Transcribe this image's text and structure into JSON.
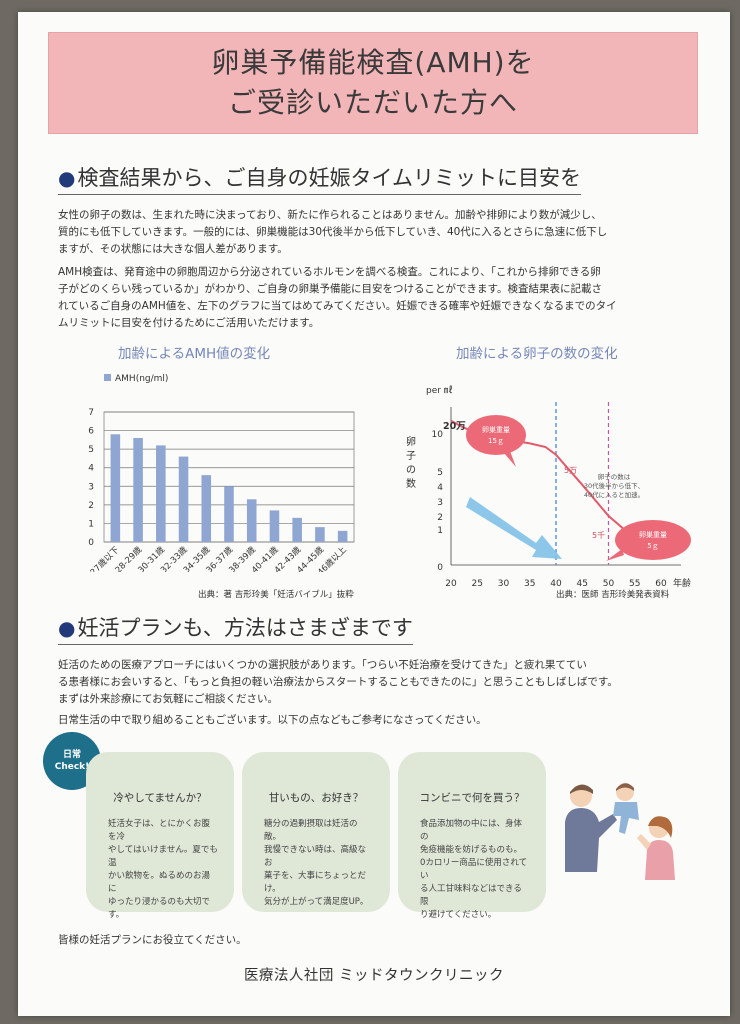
{
  "header": {
    "title_line1": "卵巣予備能検査(AMH)を",
    "title_line2": "ご受診いただいた方へ"
  },
  "section1": {
    "heading": "検査結果から、ご自身の妊娠タイムリミットに目安を",
    "para1": "女性の卵子の数は、生まれた時に決まっており、新たに作られることはありません。加齢や排卵により数が減少し、\n質的にも低下していきます。一般的には、卵巣機能は30代後半から低下していき、40代に入るとさらに急速に低下し\nますが、その状態には大きな個人差があります。",
    "para2": "AMH検査は、発育途中の卵胞周辺から分泌されているホルモンを調べる検査。これにより、「これから排卵できる卵\n子がどのくらい残っているか」がわかり、ご自身の卵巣予備能に目安をつけることができます。検査結果表に記載さ\nれているご自身のAMH値を、左下のグラフに当てはめてみてください。妊娠できる確率や妊娠できなくなるまでのタイ\nムリミットに目安を付けるためにご活用いただけます。"
  },
  "chart_data": [
    {
      "type": "bar",
      "title": "加齢によるAMH値の変化",
      "legend": "AMH(ng/ml)",
      "legend_position": "top-left",
      "categories": [
        "27歳以下",
        "28-29歳",
        "30-31歳",
        "32-33歳",
        "34-35歳",
        "36-37歳",
        "38-39歳",
        "40-41歳",
        "42-43歳",
        "44-45歳",
        "46歳以上"
      ],
      "values": [
        5.8,
        5.6,
        5.2,
        4.6,
        3.6,
        3.0,
        2.3,
        1.7,
        1.3,
        0.8,
        0.6
      ],
      "ylim": [
        0,
        7
      ],
      "yticks": [
        "0",
        "1",
        "2",
        "3",
        "4",
        "5",
        "6",
        "7"
      ],
      "grid": true,
      "color": "#8fa6d2",
      "source": "出典：著 吉形玲美「妊活バイブル」抜粋"
    },
    {
      "type": "line",
      "title": "加齢による卵子の数の変化",
      "unit": "per ㎖",
      "ylabel": "卵子の数",
      "xlabel": "年齢",
      "x": [
        20,
        22,
        25,
        30,
        35,
        38,
        40,
        42,
        45,
        50,
        55,
        60
      ],
      "y": [
        200000,
        140000,
        90000,
        65000,
        50000,
        40000,
        25000,
        12000,
        4000,
        600,
        150,
        50
      ],
      "xticks": [
        "20",
        "25",
        "30",
        "35",
        "40",
        "45",
        "50",
        "55",
        "60"
      ],
      "yticks": [
        "0",
        "1",
        "2",
        "3",
        "4",
        "5",
        "10"
      ],
      "yscale": "log",
      "color": "#e35a6a",
      "vlines": [
        40,
        50
      ],
      "annotations": {
        "start": "20万",
        "mid": "5万",
        "low": "5千",
        "ovary1_title": "卵巣重量",
        "ovary1_value": "15ｇ",
        "ovary2_title": "卵巣重量",
        "ovary2_value": "5ｇ",
        "note_line1": "卵子の数は",
        "note_line2": "30代後半から低下、",
        "note_line3": "40代に入ると加速。"
      },
      "source": "出典：医師 吉形玲美発表資料"
    }
  ],
  "section2": {
    "heading": "妊活プランも、方法はさまざまです",
    "para1": "妊活のための医療アプローチにはいくつかの選択肢があります。「つらい不妊治療を受けてきた」と疲れ果ててい\nる患者様にお会いすると、「もっと負担の軽い治療法からスタートすることもできたのに」と思うこともしばしばです。\nまずは外来診療にてお気軽にご相談ください。",
    "para2": "日常生活の中で取り組めることもございます。以下の点などもご参考になさってください。",
    "badge_line1": "日常",
    "badge_line2": "Check!",
    "cards": [
      {
        "title": "冷やしてませんか？",
        "body": "妊活女子は、とにかくお腹を冷\nやしてはいけません。夏でも温\nかい飲物を。ぬるめのお湯に\nゆったり浸かるのも大切です。"
      },
      {
        "title": "甘いもの、お好き？",
        "body": "糖分の過剰摂取は妊活の敵。\n我慢できない時は、高級なお\n菓子を、大事にちょっとだけ。\n気分が上がって満足度UP。"
      },
      {
        "title": "コンビニで何を買う？",
        "body": "食品添加物の中には、身体の\n免疫機能を妨げるものも。\n0カロリー商品に使用されてい\nる人工甘味料などはできる限\nり避けてください。"
      }
    ],
    "closing": "皆様の妊活プランにお役立てください。"
  },
  "footer": {
    "clinic": "医療法人社団 ミッドタウンクリニック"
  }
}
